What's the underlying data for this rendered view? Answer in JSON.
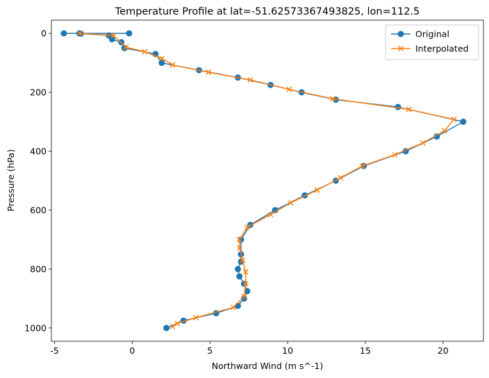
{
  "chart_data": {
    "type": "line",
    "title": "Temperature Profile at lat=-51.62573367493825, lon=112.5",
    "xlabel": "Northward Wind (m s^-1)",
    "ylabel": "Pressure (hPa)",
    "xlim": [
      -5.2,
      22.6
    ],
    "ylim": [
      1045,
      -45
    ],
    "y_inverted": true,
    "grid": false,
    "legend_position": "top-right",
    "x_ticks": [
      -5,
      0,
      5,
      10,
      15,
      20
    ],
    "y_ticks": [
      0,
      200,
      400,
      600,
      800,
      1000
    ],
    "colors": {
      "original": "#1f77b4",
      "interpolated": "#ff7f0e"
    },
    "series": [
      {
        "name": "Original",
        "marker": "circle",
        "x": [
          -0.2,
          -4.4,
          -3.4,
          -3.3,
          -1.5,
          -1.3,
          -0.7,
          -0.5,
          1.5,
          1.9,
          4.3,
          6.8,
          8.9,
          10.9,
          13.1,
          17.1,
          21.3,
          19.6,
          17.6,
          14.9,
          13.1,
          11.1,
          9.2,
          7.6,
          7.0,
          7.0,
          7.0,
          6.8,
          6.9,
          7.2,
          7.4,
          7.2,
          6.8,
          5.4,
          3.3,
          2.2
        ],
        "y": [
          0,
          0,
          0,
          1,
          7,
          20,
          30,
          50,
          70,
          100,
          125,
          150,
          175,
          200,
          225,
          250,
          300,
          350,
          400,
          450,
          500,
          550,
          600,
          650,
          700,
          750,
          775,
          800,
          825,
          850,
          875,
          900,
          925,
          950,
          975,
          1000
        ]
      },
      {
        "name": "Interpolated",
        "marker": "x",
        "x": [
          -3.4,
          -1.2,
          -0.4,
          0.8,
          1.9,
          2.6,
          4.9,
          7.6,
          10.1,
          12.9,
          17.8,
          20.7,
          20.1,
          18.7,
          16.9,
          14.8,
          13.4,
          11.9,
          10.2,
          8.9,
          7.4,
          6.9,
          6.9,
          7.1,
          7.3,
          7.3,
          7.2,
          6.5,
          4.1,
          2.9,
          2.6
        ],
        "y": [
          0,
          7,
          47,
          62,
          85,
          107,
          132,
          158,
          190,
          222,
          258,
          292,
          330,
          372,
          412,
          450,
          490,
          532,
          575,
          615,
          658,
          700,
          728,
          770,
          810,
          850,
          893,
          930,
          965,
          985,
          995
        ]
      }
    ]
  }
}
